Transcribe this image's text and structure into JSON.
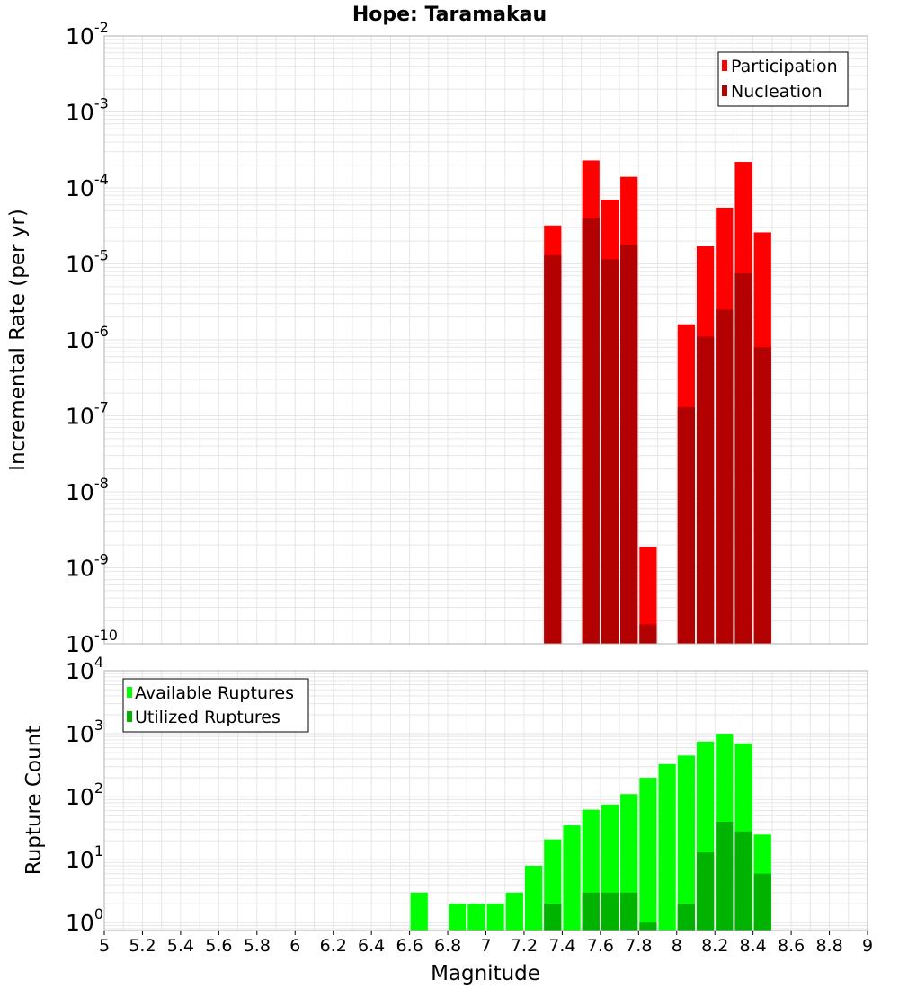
{
  "title": "Hope: Taramakau",
  "colors": {
    "participation": "#ff0000",
    "nucleation": "#b30000",
    "available": "#00ff00",
    "utilized": "#00b300",
    "grid": "#e6e6e6",
    "frame": "#b0b0b0"
  },
  "chart_data": [
    {
      "type": "bar",
      "panel": "rate",
      "xlabel": "Magnitude",
      "ylabel": "Incremental Rate (per yr)",
      "ylog": true,
      "ylim": [
        1e-10,
        0.01
      ],
      "xlim": [
        5,
        9
      ],
      "bin_width": 0.1,
      "grid": true,
      "legend": "top-right",
      "series": [
        {
          "name": "Participation",
          "x": [
            7.35,
            7.55,
            7.65,
            7.75,
            7.85,
            8.05,
            8.15,
            8.25,
            8.35,
            8.45
          ],
          "values": [
            3.2e-05,
            0.00023,
            7e-05,
            0.00014,
            1.9e-09,
            1.6e-06,
            1.7e-05,
            5.5e-05,
            0.00022,
            2.6e-05
          ]
        },
        {
          "name": "Nucleation",
          "x": [
            7.35,
            7.55,
            7.65,
            7.75,
            7.85,
            8.05,
            8.15,
            8.25,
            8.35,
            8.45
          ],
          "values": [
            1.3e-05,
            4e-05,
            1.15e-05,
            1.8e-05,
            1.8e-10,
            1.3e-07,
            1.1e-06,
            2.5e-06,
            7.5e-06,
            8e-07
          ]
        }
      ]
    },
    {
      "type": "bar",
      "panel": "count",
      "xlabel": "Magnitude",
      "ylabel": "Rupture Count",
      "ylog": true,
      "ylim": [
        0.75,
        10000
      ],
      "xlim": [
        5,
        9
      ],
      "bin_width": 0.1,
      "grid": true,
      "legend": "top-left",
      "x_ticks": [
        "5",
        "5.2",
        "5.4",
        "5.6",
        "5.8",
        "6",
        "6.2",
        "6.4",
        "6.6",
        "6.8",
        "7",
        "7.2",
        "7.4",
        "7.6",
        "7.8",
        "8",
        "8.2",
        "8.4",
        "8.6",
        "8.8",
        "9"
      ],
      "series": [
        {
          "name": "Available Ruptures",
          "x": [
            6.65,
            6.85,
            6.95,
            7.05,
            7.15,
            7.25,
            7.35,
            7.45,
            7.55,
            7.65,
            7.75,
            7.85,
            7.95,
            8.05,
            8.15,
            8.25,
            8.35,
            8.45
          ],
          "values": [
            3,
            2,
            2,
            2,
            3,
            8,
            21,
            35,
            62,
            75,
            110,
            200,
            330,
            450,
            750,
            1000,
            700,
            25
          ]
        },
        {
          "name": "Utilized Ruptures",
          "x": [
            7.35,
            7.55,
            7.65,
            7.75,
            7.85,
            8.05,
            8.15,
            8.25,
            8.35,
            8.45
          ],
          "values": [
            2,
            3,
            3,
            3,
            1,
            2,
            13,
            40,
            28,
            6
          ]
        }
      ]
    }
  ]
}
